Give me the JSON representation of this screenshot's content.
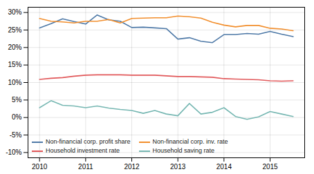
{
  "chart_data": {
    "type": "line",
    "x": [
      2010.0,
      2010.25,
      2010.5,
      2010.75,
      2011.0,
      2011.25,
      2011.5,
      2011.75,
      2012.0,
      2012.25,
      2012.5,
      2012.75,
      2013.0,
      2013.25,
      2013.5,
      2013.75,
      2014.0,
      2014.25,
      2014.5,
      2014.75,
      2015.0,
      2015.25,
      2015.5
    ],
    "series": [
      {
        "name": "Non-financial corp. profit share",
        "values": [
          0.256,
          0.268,
          0.282,
          0.274,
          0.267,
          0.293,
          0.279,
          0.275,
          0.257,
          0.258,
          0.256,
          0.254,
          0.224,
          0.228,
          0.218,
          0.214,
          0.237,
          0.237,
          0.24,
          0.238,
          0.246,
          0.238,
          0.231
        ]
      },
      {
        "name": "Non-financial corp. inv. rate",
        "values": [
          0.283,
          0.275,
          0.273,
          0.27,
          0.275,
          0.275,
          0.28,
          0.27,
          0.283,
          0.284,
          0.285,
          0.285,
          0.29,
          0.288,
          0.284,
          0.272,
          0.264,
          0.259,
          0.263,
          0.263,
          0.255,
          0.253,
          0.248
        ]
      },
      {
        "name": "Household investment rate",
        "values": [
          0.109,
          0.112,
          0.114,
          0.118,
          0.121,
          0.122,
          0.122,
          0.122,
          0.121,
          0.121,
          0.121,
          0.119,
          0.117,
          0.117,
          0.116,
          0.115,
          0.111,
          0.11,
          0.109,
          0.108,
          0.105,
          0.104,
          0.105
        ]
      },
      {
        "name": "Household saving rate",
        "values": [
          0.028,
          0.048,
          0.035,
          0.033,
          0.028,
          0.033,
          0.027,
          0.023,
          0.02,
          0.012,
          0.02,
          0.01,
          0.005,
          0.04,
          0.01,
          0.015,
          0.028,
          0.003,
          -0.005,
          0.002,
          0.017,
          0.01,
          0.003
        ]
      }
    ],
    "xlim": [
      2009.75,
      2015.75
    ],
    "ylim": [
      -0.115,
      0.315
    ],
    "xticks": [
      2010,
      2011,
      2012,
      2013,
      2014,
      2015
    ],
    "yticks": [
      {
        "value": -0.1,
        "label": "-10%"
      },
      {
        "value": -0.05,
        "label": "-5%"
      },
      {
        "value": 0.0,
        "label": "0%"
      },
      {
        "value": 0.05,
        "label": "5%"
      },
      {
        "value": 0.1,
        "label": "10%"
      },
      {
        "value": 0.15,
        "label": "15%"
      },
      {
        "value": 0.2,
        "label": "20%"
      },
      {
        "value": 0.25,
        "label": "25%"
      },
      {
        "value": 0.3,
        "label": "30%"
      }
    ],
    "grid": true,
    "legend": "lower left"
  }
}
